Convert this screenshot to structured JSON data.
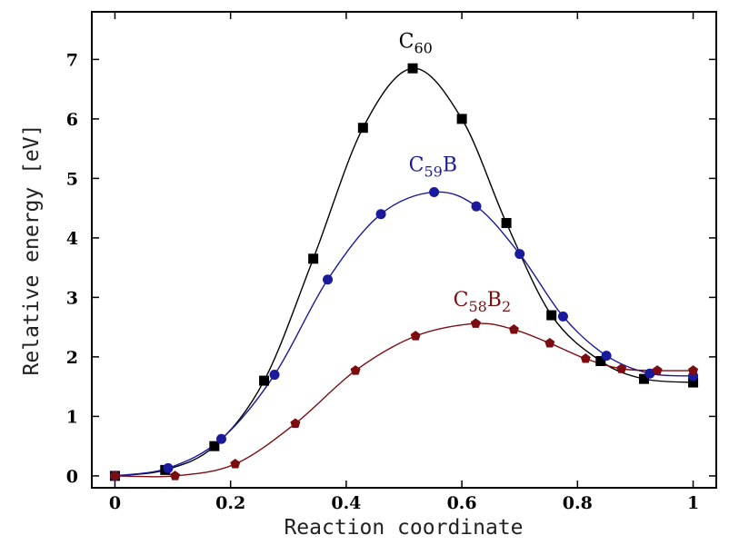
{
  "chart_data": {
    "type": "line",
    "title": "",
    "xlabel": "Reaction coordinate",
    "ylabel": "Relative energy [eV]",
    "xlim": [
      -0.04,
      1.04
    ],
    "ylim": [
      -0.2,
      7.8
    ],
    "xticks": [
      0,
      0.2,
      0.4,
      0.6,
      0.8,
      1
    ],
    "xtick_labels": [
      "0",
      "0.2",
      "0.4",
      "0.6",
      "0.8",
      "1"
    ],
    "yticks": [
      0,
      1,
      2,
      3,
      4,
      5,
      6,
      7
    ],
    "ytick_labels": [
      "0",
      "1",
      "2",
      "3",
      "4",
      "5",
      "6",
      "7"
    ],
    "grid": false,
    "series": [
      {
        "name": "C60",
        "label_main": "C",
        "label_sub": "60",
        "label_tail": "",
        "label_tail_sub": "",
        "color": "#000000",
        "marker": "square",
        "x": [
          0,
          0.087,
          0.172,
          0.258,
          0.343,
          0.429,
          0.515,
          0.6,
          0.677,
          0.755,
          0.84,
          0.915,
          1.0
        ],
        "y": [
          0,
          0.1,
          0.5,
          1.6,
          3.65,
          5.85,
          6.85,
          6.0,
          4.25,
          2.7,
          1.93,
          1.63,
          1.57
        ],
        "label_pos": [
          0.52,
          7.2
        ]
      },
      {
        "name": "C59B",
        "label_main": "C",
        "label_sub": "59",
        "label_tail": "B",
        "label_tail_sub": "",
        "color": "#1a1a9c",
        "marker": "circle",
        "x": [
          0,
          0.092,
          0.184,
          0.276,
          0.368,
          0.46,
          0.552,
          0.625,
          0.7,
          0.775,
          0.85,
          0.925,
          1.0
        ],
        "y": [
          0,
          0.13,
          0.62,
          1.7,
          3.3,
          4.4,
          4.77,
          4.53,
          3.73,
          2.68,
          2.02,
          1.72,
          1.68
        ],
        "label_pos": [
          0.55,
          5.12
        ]
      },
      {
        "name": "C58B2",
        "label_main": "C",
        "label_sub": "58",
        "label_tail": "B",
        "label_tail_sub": "2",
        "color": "#7b0c10",
        "marker": "pentagon",
        "x": [
          0,
          0.104,
          0.208,
          0.312,
          0.416,
          0.52,
          0.624,
          0.69,
          0.752,
          0.814,
          0.876,
          0.938,
          1.0
        ],
        "y": [
          0,
          0.0,
          0.2,
          0.88,
          1.77,
          2.35,
          2.56,
          2.46,
          2.23,
          1.97,
          1.8,
          1.77,
          1.77
        ],
        "label_pos": [
          0.635,
          2.85
        ]
      }
    ]
  }
}
